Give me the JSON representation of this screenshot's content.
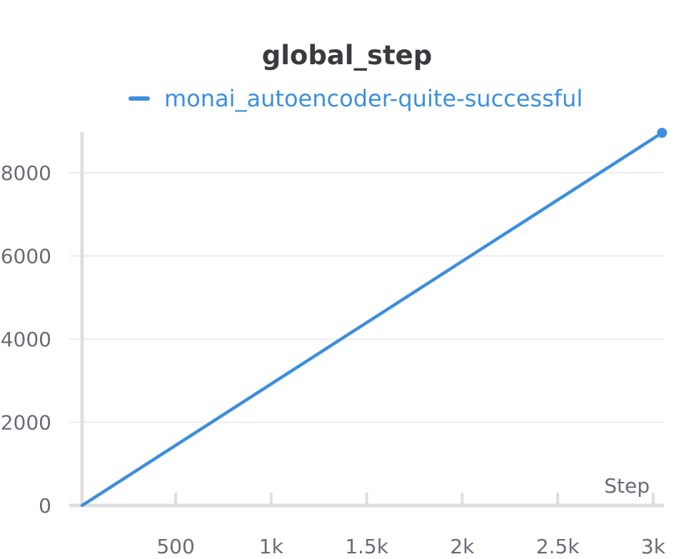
{
  "chart_data": {
    "type": "line",
    "title": "global_step",
    "xlabel": "Step",
    "ylabel": "",
    "xlim": [
      0,
      3050
    ],
    "ylim": [
      0,
      8000
    ],
    "x_ticks": [
      {
        "value": 500,
        "label": "500"
      },
      {
        "value": 1000,
        "label": "1k"
      },
      {
        "value": 1500,
        "label": "1.5k"
      },
      {
        "value": 2000,
        "label": "2k"
      },
      {
        "value": 2500,
        "label": "2.5k"
      },
      {
        "value": 3000,
        "label": "3k"
      }
    ],
    "y_ticks": [
      {
        "value": 0,
        "label": "0"
      },
      {
        "value": 2000,
        "label": "2000"
      },
      {
        "value": 4000,
        "label": "4000"
      },
      {
        "value": 6000,
        "label": "6000"
      },
      {
        "value": 8000,
        "label": "8000"
      }
    ],
    "grid": true,
    "legend_position": "top-center",
    "series": [
      {
        "name": "monai_autoencoder-quite-successful",
        "color": "#3c8fdd",
        "x": [
          10,
          3050
        ],
        "y": [
          0,
          8970
        ]
      }
    ]
  }
}
